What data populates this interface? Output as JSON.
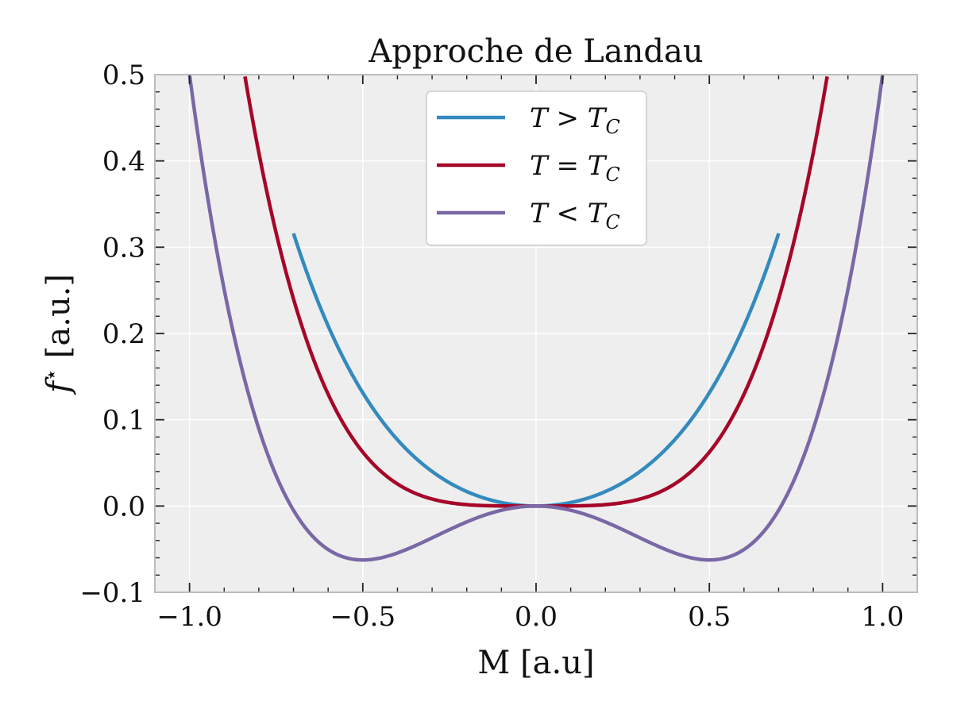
{
  "chart_data": {
    "type": "line",
    "title": "Approche de Landau",
    "xlabel": "M [a.u]",
    "ylabel": "f* [a.u.]",
    "ylabel_main": "f",
    "ylabel_sup": "⋆",
    "ylabel_unit": " [a.u.]",
    "xlim": [
      -1.1,
      1.1
    ],
    "ylim": [
      -0.1,
      0.5
    ],
    "xticks": [
      -1.0,
      -0.5,
      0.0,
      0.5,
      1.0
    ],
    "xtick_labels": [
      "−1.0",
      "−0.5",
      "0.0",
      "0.5",
      "1.0"
    ],
    "yticks": [
      -0.1,
      0.0,
      0.1,
      0.2,
      0.3,
      0.4,
      0.5
    ],
    "ytick_labels": [
      "−0.1",
      "0.0",
      "0.1",
      "0.2",
      "0.3",
      "0.4",
      "0.5"
    ],
    "grid": true,
    "legend_position": "top-center",
    "series": [
      {
        "name": "T > T_C",
        "label_lhs": "T",
        "label_op": ">",
        "label_rhs": "T",
        "label_sub": "C",
        "color": "#348ABD",
        "function": "f(M) = 0.4 M^2 + 0.5 M^4",
        "coefficients": {
          "m2": 0.4,
          "m4": 0.5
        },
        "x": [
          -0.7,
          -0.6,
          -0.5,
          -0.4,
          -0.3,
          -0.2,
          -0.1,
          0.0,
          0.1,
          0.2,
          0.3,
          0.4,
          0.5,
          0.6,
          0.7
        ],
        "y": [
          0.316,
          0.209,
          0.131,
          0.077,
          0.04,
          0.017,
          0.004,
          0.0,
          0.004,
          0.017,
          0.04,
          0.077,
          0.131,
          0.209,
          0.316
        ]
      },
      {
        "name": "T = T_C",
        "label_lhs": "T",
        "label_op": "=",
        "label_rhs": "T",
        "label_sub": "C",
        "color": "#A60628",
        "function": "f(M) = M^4",
        "coefficients": {
          "m2": 0.0,
          "m4": 1.0
        },
        "x": [
          -0.84,
          -0.7,
          -0.6,
          -0.5,
          -0.4,
          -0.3,
          -0.2,
          -0.1,
          0.0,
          0.1,
          0.2,
          0.3,
          0.4,
          0.5,
          0.6,
          0.7,
          0.84
        ],
        "y": [
          0.498,
          0.24,
          0.13,
          0.063,
          0.026,
          0.008,
          0.002,
          0.0,
          0.0,
          0.0,
          0.002,
          0.008,
          0.026,
          0.063,
          0.13,
          0.24,
          0.498
        ]
      },
      {
        "name": "T < T_C",
        "label_lhs": "T",
        "label_op": "<",
        "label_rhs": "T",
        "label_sub": "C",
        "color": "#7A68A6",
        "function": "f(M) = -0.5 M^2 + M^4",
        "coefficients": {
          "m2": -0.5,
          "m4": 1.0
        },
        "x": [
          -1.0,
          -0.9,
          -0.8,
          -0.7,
          -0.6,
          -0.5,
          -0.4,
          -0.3,
          -0.2,
          -0.1,
          0.0,
          0.1,
          0.2,
          0.3,
          0.4,
          0.5,
          0.6,
          0.7,
          0.8,
          0.9,
          1.0
        ],
        "y": [
          0.5,
          0.251,
          0.09,
          -0.005,
          -0.05,
          -0.0625,
          -0.054,
          -0.037,
          -0.018,
          -0.005,
          0.0,
          -0.005,
          -0.018,
          -0.037,
          -0.054,
          -0.0625,
          -0.05,
          -0.005,
          0.09,
          0.251,
          0.5
        ]
      }
    ]
  }
}
